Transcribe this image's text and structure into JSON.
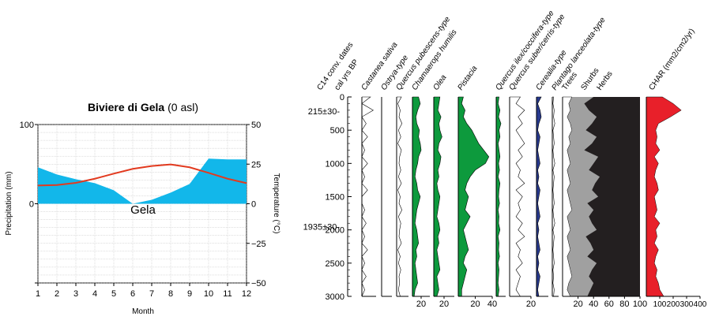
{
  "chart_data": [
    {
      "type": "area",
      "title": {
        "bold": "Biviere di Gela",
        "normal": " (0 asl)"
      },
      "station_label": "Gela",
      "xlabel": "Month",
      "ylabel": "Precipitation (mm)",
      "y2label": "Temperature (°C)",
      "categories": [
        1,
        2,
        3,
        4,
        5,
        6,
        7,
        8,
        9,
        10,
        11,
        12
      ],
      "xlim": [
        1,
        12
      ],
      "ylim": [
        -100,
        100
      ],
      "y2lim": [
        -50,
        50
      ],
      "y_ticks": [
        -100,
        0,
        100
      ],
      "y_tick_labels": [
        "",
        "0",
        "100"
      ],
      "y2_ticks": [
        -50,
        -25,
        0,
        25,
        50
      ],
      "y2_tick_labels": [
        "−50",
        "−25",
        "0",
        "25",
        "50"
      ],
      "grid": true,
      "colors": {
        "precip": "#12b7ea",
        "temp": "#e23a1f",
        "grid": "#bdbdbd"
      },
      "series": [
        {
          "name": "Precipitation",
          "values": [
            46,
            37,
            31,
            26,
            17,
            0,
            5,
            14,
            25,
            57,
            56,
            56
          ]
        },
        {
          "name": "Temperature",
          "values": [
            11.5,
            11.8,
            13.2,
            15.8,
            19,
            22,
            23.8,
            24.8,
            23,
            19.5,
            15.8,
            13
          ]
        }
      ]
    },
    {
      "type": "area",
      "subtype": "pollen-stratigraphic-diagram",
      "y_axis": {
        "ticks": [
          0,
          500,
          1000,
          1500,
          2000,
          2500,
          3000
        ],
        "ylim": [
          0,
          3000
        ],
        "inverted": true
      },
      "dates": {
        "header": "C14 conv. dates",
        "items": [
          {
            "label": "215±30-",
            "age": 215
          },
          {
            "label": "1935±30-",
            "age": 1950
          }
        ]
      },
      "age_header": "cal yrs BP",
      "colors": {
        "green": "#0d9a3d",
        "grey": "#a0a0a0",
        "dark": "#231f20",
        "red": "#e8202a",
        "blue": "#283a8f"
      },
      "panels": [
        {
          "name": "Castanea sativa",
          "italic": true,
          "xmax": 5,
          "x_ticks": [],
          "fill": "",
          "values": [
            3,
            0,
            4,
            0,
            1.5,
            0,
            2,
            0,
            1,
            0,
            2,
            0,
            1,
            0,
            2,
            0,
            0,
            1,
            0,
            1.5,
            0,
            1,
            0,
            2,
            0,
            1,
            0,
            1.5,
            0,
            1,
            0
          ]
        },
        {
          "name": "Ostrya-type",
          "italic": true,
          "xmax": 5,
          "x_ticks": [],
          "fill": "",
          "values": [
            0,
            0,
            0,
            0,
            0,
            0,
            0,
            0,
            0,
            0,
            0,
            0,
            0,
            0,
            0,
            0,
            0,
            0,
            0,
            0,
            0,
            0,
            0,
            0,
            0,
            0,
            0,
            0,
            0,
            0,
            0
          ]
        },
        {
          "name": "Quercus pubescens-type",
          "italic": true,
          "xmax": 20,
          "x_ticks": [],
          "fill": "",
          "values": [
            8,
            2,
            6,
            4,
            9,
            3,
            7,
            2,
            8,
            5,
            4,
            7,
            3,
            8,
            2,
            6,
            4,
            9,
            3,
            7,
            5,
            4,
            8,
            2,
            6,
            3,
            7,
            4,
            5,
            3,
            6
          ]
        },
        {
          "name": "Chamaerops humilis",
          "italic": true,
          "xmax": 40,
          "x_ticks": [
            20
          ],
          "x_tick_labels": [
            "20"
          ],
          "fill": "#0d9a3d",
          "values": [
            14,
            18,
            12,
            8,
            10,
            16,
            14,
            18,
            20,
            14,
            12,
            8,
            6,
            10,
            12,
            18,
            14,
            10,
            8,
            6,
            10,
            12,
            14,
            8,
            10,
            6,
            8,
            10,
            12,
            6,
            4
          ]
        },
        {
          "name": "Olea",
          "italic": true,
          "xmax": 40,
          "x_ticks": [
            20
          ],
          "x_tick_labels": [
            "20"
          ],
          "fill": "#0d9a3d",
          "values": [
            12,
            10,
            8,
            14,
            10,
            12,
            16,
            10,
            8,
            14,
            12,
            8,
            10,
            6,
            8,
            12,
            10,
            8,
            6,
            10,
            12,
            8,
            10,
            6,
            8,
            10,
            12,
            6,
            8,
            10,
            6
          ]
        },
        {
          "name": "Pistacia",
          "italic": true,
          "xmax": 40,
          "x_ticks": [
            20,
            40
          ],
          "x_tick_labels": [
            "20",
            "40"
          ],
          "fill": "#0d9a3d",
          "values": [
            6,
            4,
            8,
            6,
            10,
            16,
            20,
            24,
            30,
            36,
            32,
            20,
            14,
            10,
            8,
            12,
            10,
            8,
            14,
            10,
            6,
            8,
            10,
            12,
            8,
            6,
            10,
            8,
            6,
            4,
            4
          ]
        },
        {
          "name": "Quercus ilex/coccifera-type",
          "italic": true,
          "xmax": 20,
          "x_ticks": [],
          "fill": "#0d9a3d",
          "values": [
            6,
            4,
            8,
            5,
            10,
            6,
            8,
            4,
            6,
            8,
            5,
            7,
            4,
            8,
            6,
            5,
            7,
            4,
            6,
            5,
            8,
            4,
            6,
            5,
            7,
            4,
            6,
            5,
            4,
            6,
            4
          ]
        },
        {
          "name": "Quercus suber/cerris-type",
          "italic": true,
          "xmax": 20,
          "x_ticks": [
            20
          ],
          "x_tick_labels": [
            "20"
          ],
          "fill": "",
          "values": [
            10,
            6,
            14,
            8,
            12,
            6,
            10,
            14,
            8,
            12,
            6,
            10,
            8,
            14,
            6,
            12,
            8,
            10,
            6,
            12,
            8,
            14,
            6,
            10,
            8,
            12,
            6,
            10,
            8,
            6,
            10
          ]
        },
        {
          "name": "Cerealia-type",
          "italic": true,
          "xmax": 10,
          "x_ticks": [],
          "fill": "#283a8f",
          "values": [
            4,
            1,
            3,
            4,
            2,
            1,
            3,
            2,
            1,
            2,
            3,
            1,
            2,
            1,
            3,
            2,
            1,
            2,
            3,
            1,
            2,
            1,
            2,
            3,
            1,
            2,
            1,
            3,
            2,
            1,
            2
          ]
        },
        {
          "name": "Plantago lanceolata-type",
          "italic": true,
          "xmax": 10,
          "x_ticks": [],
          "fill": "",
          "values": [
            2,
            1,
            3,
            2,
            4,
            1,
            2,
            3,
            1,
            2,
            4,
            1,
            3,
            2,
            1,
            2,
            3,
            1,
            2,
            4,
            1,
            3,
            2,
            1,
            2,
            3,
            1,
            2,
            1,
            3,
            2
          ]
        }
      ],
      "sum_panel": {
        "names": [
          "Trees",
          "Shurbs",
          "Herbs"
        ],
        "x_ticks": [
          20,
          40,
          60,
          80,
          100
        ],
        "x_tick_labels": [
          "20",
          "40",
          "60",
          "80",
          "100"
        ],
        "trees": [
          12,
          8,
          10,
          6,
          10,
          12,
          8,
          10,
          6,
          8,
          10,
          6,
          8,
          10,
          6,
          8,
          10,
          12,
          6,
          8,
          10,
          6,
          8,
          10,
          6,
          8,
          10,
          12,
          8,
          6,
          10
        ],
        "trees_plus_shrubs": [
          40,
          28,
          34,
          44,
          38,
          30,
          44,
          38,
          28,
          46,
          40,
          34,
          48,
          42,
          38,
          46,
          32,
          40,
          34,
          38,
          44,
          30,
          36,
          40,
          32,
          44,
          38,
          34,
          40,
          36,
          32
        ]
      },
      "char_panel": {
        "name": "CHAR (mm2/cm2/yr)",
        "x_ticks": [
          100,
          200,
          300,
          400
        ],
        "x_tick_labels": [
          "100",
          "200",
          "300",
          "400"
        ],
        "xmax": 400,
        "values": [
          120,
          200,
          260,
          180,
          90,
          70,
          80,
          70,
          100,
          60,
          90,
          70,
          60,
          80,
          90,
          60,
          70,
          80,
          60,
          100,
          70,
          80,
          60,
          90,
          70,
          60,
          80,
          70,
          90,
          100,
          130
        ]
      }
    }
  ]
}
